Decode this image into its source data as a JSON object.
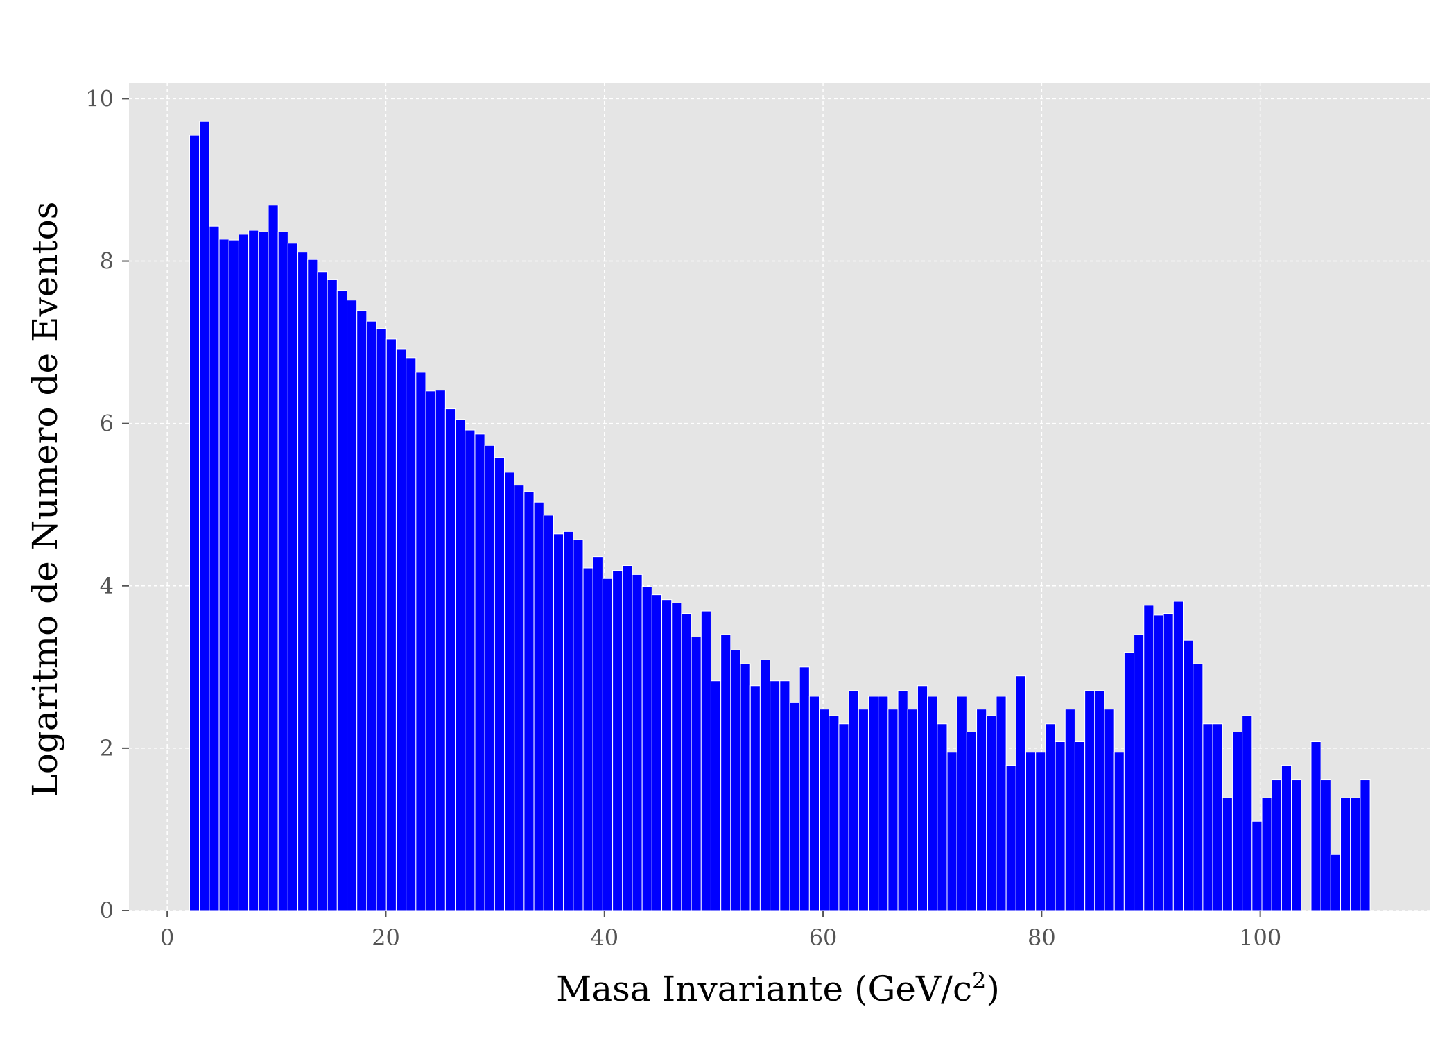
{
  "chart_data": {
    "type": "bar",
    "xlabel": "Masa Invariante (GeV/c",
    "xlabel_superscript": "2",
    "xlabel_suffix": ")",
    "ylabel": "Logaritmo de Numero de Eventos",
    "xlim": [
      -3.5,
      115.5
    ],
    "ylim": [
      0,
      10.2
    ],
    "x_ticks": [
      0,
      20,
      40,
      60,
      80,
      100
    ],
    "x_tick_labels": [
      "0",
      "20",
      "40",
      "60",
      "80",
      "100"
    ],
    "y_ticks": [
      0,
      2,
      4,
      6,
      8,
      10
    ],
    "y_tick_labels": [
      "0",
      "2",
      "4",
      "6",
      "8",
      "10"
    ],
    "grid": true,
    "bar_color": "#0000ff",
    "background_color": "#e5e5e5",
    "grid_color": "#ffffff",
    "bin_width": 0.9,
    "x": [
      2.5,
      3.4,
      4.3,
      5.2,
      6.1,
      7,
      7.9,
      8.8,
      9.7,
      10.6,
      11.5,
      12.4,
      13.3,
      14.2,
      15.1,
      16,
      16.9,
      17.8,
      18.7,
      19.6,
      20.5,
      21.4,
      22.3,
      23.2,
      24.1,
      25,
      25.9,
      26.8,
      27.7,
      28.6,
      29.5,
      30.4,
      31.3,
      32.2,
      33.1,
      34,
      34.9,
      35.8,
      36.7,
      37.6,
      38.5,
      39.4,
      40.3,
      41.2,
      42.1,
      43,
      43.9,
      44.8,
      45.7,
      46.6,
      47.5,
      48.4,
      49.3,
      50.2,
      51.1,
      52,
      52.9,
      53.8,
      54.7,
      55.6,
      56.5,
      57.4,
      58.3,
      59.2,
      60.1,
      61,
      61.9,
      62.8,
      63.7,
      64.6,
      65.5,
      66.4,
      67.3,
      68.2,
      69.1,
      70,
      70.9,
      71.8,
      72.7,
      73.6,
      74.5,
      75.4,
      76.3,
      77.2,
      78.1,
      79,
      79.9,
      80.8,
      81.7,
      82.6,
      83.5,
      84.4,
      85.3,
      86.2,
      87.1,
      88,
      88.9,
      89.8,
      90.7,
      91.6,
      92.5,
      93.4,
      94.3,
      95.2,
      96.1,
      97,
      97.9,
      98.8,
      99.7,
      100.6,
      101.5,
      102.4,
      103.3,
      104.2,
      105.1,
      106,
      106.9,
      107.8,
      108.7,
      109.6
    ],
    "values": [
      9.55,
      9.72,
      8.43,
      8.27,
      8.26,
      8.33,
      8.38,
      8.36,
      8.69,
      8.36,
      8.22,
      8.11,
      8.02,
      7.87,
      7.77,
      7.64,
      7.52,
      7.39,
      7.26,
      7.17,
      7.04,
      6.92,
      6.81,
      6.63,
      6.4,
      6.41,
      6.18,
      6.05,
      5.92,
      5.87,
      5.73,
      5.58,
      5.4,
      5.24,
      5.16,
      5.03,
      4.87,
      4.64,
      4.67,
      4.57,
      4.22,
      4.36,
      4.09,
      4.19,
      4.25,
      4.14,
      3.99,
      3.89,
      3.83,
      3.79,
      3.66,
      3.37,
      3.69,
      2.83,
      3.4,
      3.21,
      3.04,
      2.77,
      3.09,
      2.83,
      2.83,
      2.56,
      3.0,
      2.64,
      2.48,
      2.4,
      2.3,
      2.71,
      2.48,
      2.64,
      2.64,
      2.48,
      2.71,
      2.48,
      2.77,
      2.64,
      2.3,
      1.95,
      2.64,
      2.2,
      2.48,
      2.4,
      2.64,
      1.79,
      2.89,
      1.95,
      1.95,
      2.3,
      2.08,
      2.48,
      2.08,
      2.71,
      2.71,
      2.48,
      1.95,
      3.18,
      3.4,
      3.76,
      3.64,
      3.66,
      3.81,
      3.33,
      3.04,
      2.3,
      2.3,
      1.39,
      2.2,
      2.4,
      1.1,
      1.39,
      1.61,
      1.79,
      1.61,
      0,
      2.08,
      1.61,
      0.69,
      1.39,
      1.39,
      1.61
    ]
  }
}
